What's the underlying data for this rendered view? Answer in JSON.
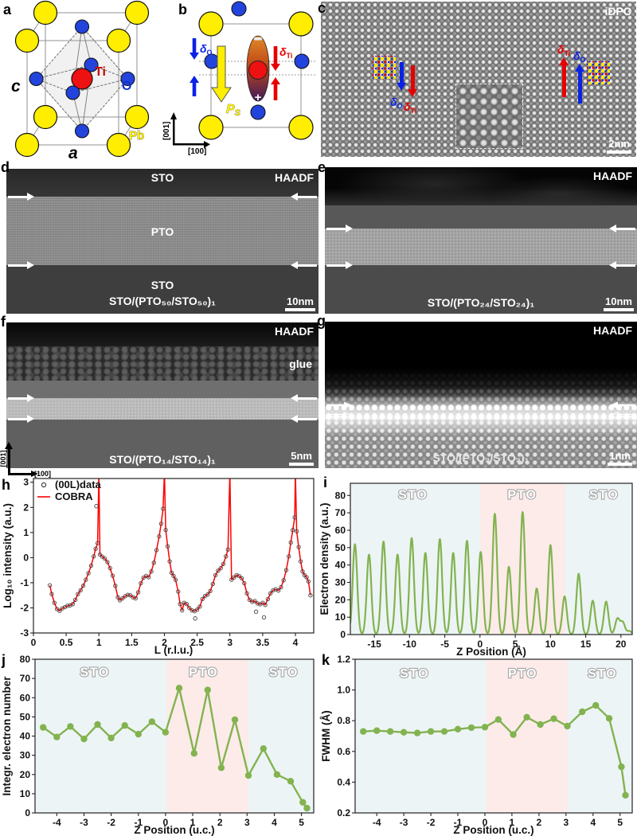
{
  "figure": {
    "panels": {
      "a": {
        "label": "a",
        "c_axis": "c",
        "a_axis": "a",
        "ti": "Ti",
        "o": "O",
        "pb": "Pb",
        "colors": {
          "pb": "#ffee00",
          "o": "#1133cc",
          "ti": "#ee1111"
        }
      },
      "b": {
        "label": "b",
        "delta_o": "δ",
        "delta_o_sub": "O",
        "delta_ti": "δ",
        "delta_ti_sub": "Ti",
        "ps": "P",
        "ps_sub": "S",
        "plus": "+",
        "minus": "−",
        "axis_v": "[001]",
        "axis_h": "[100]"
      },
      "c": {
        "label": "c",
        "technique": "iDPC",
        "scalebar": "2nm",
        "delta_o": "δ",
        "delta_o_sub": "O",
        "delta_ti": "δ",
        "delta_ti_sub": "Ti"
      },
      "d": {
        "label": "d",
        "technique": "HAADF",
        "layer_top": "STO",
        "layer_mid": "PTO",
        "layer_bot": "STO",
        "caption": "STO/(PTO₅₀/STO₅₀)₁",
        "scalebar": "10nm"
      },
      "e": {
        "label": "e",
        "technique": "HAADF",
        "caption": "STO/(PTO₂₄/STO₂₄)₁",
        "scalebar": "10nm"
      },
      "f": {
        "label": "f",
        "technique": "HAADF",
        "glue": "glue",
        "caption": "STO/(PTO₁₄/STO₁₄)₁",
        "scalebar": "5nm",
        "axis_v": "[001]",
        "axis_h": "[100]"
      },
      "g": {
        "label": "g",
        "technique": "HAADF",
        "caption": "STO/(PTO₂/STO₂)₁",
        "scalebar": "1nm"
      },
      "h": {
        "label": "h"
      },
      "i": {
        "label": "i"
      },
      "j": {
        "label": "j"
      },
      "k": {
        "label": "k"
      }
    }
  },
  "chart_data": [
    {
      "id": "h",
      "type": "line+scatter",
      "title": "",
      "xlabel": "L (r.l.u.)",
      "ylabel": "Log₁₀ intensity (a.u.)",
      "xlim": [
        0,
        4.28
      ],
      "ylim": [
        -3,
        3.15
      ],
      "xticks": [
        0,
        0.5,
        1,
        1.5,
        2,
        2.5,
        3,
        3.5,
        4
      ],
      "yticks": [
        -3,
        -2,
        -1,
        0,
        1,
        2,
        3
      ],
      "grid": false,
      "bg": "#ffffff",
      "legend": [
        {
          "label": "(00L)data",
          "type": "scatter",
          "color": "#333333"
        },
        {
          "label": "COBRA",
          "type": "line",
          "color": "#ff0000"
        }
      ],
      "line_color": "#ff0000",
      "line_width": 1.5,
      "markers": "open",
      "marker_color": "#444444",
      "marker_max": 2.5,
      "points": [
        [
          0.25,
          -1.1
        ],
        [
          0.28,
          -1.45
        ],
        [
          0.32,
          -1.8
        ],
        [
          0.36,
          -2.05
        ],
        [
          0.4,
          -2.12
        ],
        [
          0.44,
          -2.02
        ],
        [
          0.48,
          -1.97
        ],
        [
          0.52,
          -1.92
        ],
        [
          0.56,
          -1.9
        ],
        [
          0.6,
          -1.85
        ],
        [
          0.64,
          -1.68
        ],
        [
          0.68,
          -1.45
        ],
        [
          0.72,
          -1.3
        ],
        [
          0.76,
          -1.12
        ],
        [
          0.8,
          -0.88
        ],
        [
          0.84,
          -0.62
        ],
        [
          0.88,
          -0.32
        ],
        [
          0.92,
          0.05
        ],
        [
          0.95,
          0.35
        ],
        [
          0.98,
          0.58
        ],
        [
          1.0,
          3.4
        ],
        [
          1.015,
          0.12
        ],
        [
          1.05,
          0.04
        ],
        [
          1.09,
          -0.04
        ],
        [
          1.13,
          -0.18
        ],
        [
          1.17,
          -0.42
        ],
        [
          1.21,
          -0.72
        ],
        [
          1.25,
          -1.12
        ],
        [
          1.29,
          -1.58
        ],
        [
          1.32,
          -1.7
        ],
        [
          1.36,
          -1.62
        ],
        [
          1.4,
          -1.54
        ],
        [
          1.44,
          -1.48
        ],
        [
          1.48,
          -1.5
        ],
        [
          1.52,
          -1.58
        ],
        [
          1.56,
          -1.62
        ],
        [
          1.6,
          -1.38
        ],
        [
          1.64,
          -1.02
        ],
        [
          1.68,
          -0.8
        ],
        [
          1.72,
          -0.73
        ],
        [
          1.76,
          -0.78
        ],
        [
          1.8,
          -0.55
        ],
        [
          1.84,
          -0.2
        ],
        [
          1.88,
          0.3
        ],
        [
          1.92,
          0.85
        ],
        [
          1.95,
          1.35
        ],
        [
          1.98,
          1.95
        ],
        [
          2.0,
          3.4
        ],
        [
          2.02,
          1.1
        ],
        [
          2.05,
          0.45
        ],
        [
          2.08,
          -0.15
        ],
        [
          2.11,
          -0.6
        ],
        [
          2.14,
          -0.73
        ],
        [
          2.17,
          -0.88
        ],
        [
          2.21,
          -1.35
        ],
        [
          2.24,
          -1.85
        ],
        [
          2.27,
          -2.1
        ],
        [
          2.3,
          -1.8
        ],
        [
          2.34,
          -1.85
        ],
        [
          2.38,
          -2.0
        ],
        [
          2.42,
          -2.1
        ],
        [
          2.46,
          -2.13
        ],
        [
          2.5,
          -2.07
        ],
        [
          2.54,
          -1.95
        ],
        [
          2.58,
          -1.65
        ],
        [
          2.62,
          -1.53
        ],
        [
          2.66,
          -1.47
        ],
        [
          2.7,
          -1.33
        ],
        [
          2.74,
          -1.05
        ],
        [
          2.78,
          -0.7
        ],
        [
          2.82,
          -0.52
        ],
        [
          2.86,
          -0.42
        ],
        [
          2.9,
          -0.25
        ],
        [
          2.94,
          0.05
        ],
        [
          2.97,
          0.32
        ],
        [
          3.0,
          3.4
        ],
        [
          3.025,
          -0.88
        ],
        [
          3.06,
          -0.79
        ],
        [
          3.1,
          -0.7
        ],
        [
          3.14,
          -0.73
        ],
        [
          3.18,
          -0.82
        ],
        [
          3.22,
          -1.02
        ],
        [
          3.26,
          -1.42
        ],
        [
          3.3,
          -1.68
        ],
        [
          3.34,
          -1.76
        ],
        [
          3.38,
          -1.73
        ],
        [
          3.42,
          -1.82
        ],
        [
          3.46,
          -1.86
        ],
        [
          3.5,
          -1.8
        ],
        [
          3.54,
          -1.88
        ],
        [
          3.58,
          -1.65
        ],
        [
          3.62,
          -1.42
        ],
        [
          3.66,
          -1.3
        ],
        [
          3.7,
          -1.26
        ],
        [
          3.74,
          -1.31
        ],
        [
          3.78,
          -1.18
        ],
        [
          3.82,
          -0.9
        ],
        [
          3.86,
          -0.5
        ],
        [
          3.9,
          0.05
        ],
        [
          3.93,
          0.6
        ],
        [
          3.96,
          1.1
        ],
        [
          3.99,
          1.6
        ],
        [
          4.0,
          3.4
        ],
        [
          4.02,
          1.05
        ],
        [
          4.05,
          0.42
        ],
        [
          4.08,
          -0.15
        ],
        [
          4.11,
          -0.55
        ],
        [
          4.14,
          -0.7
        ],
        [
          4.17,
          -0.78
        ],
        [
          4.2,
          -0.95
        ],
        [
          4.23,
          -1.5
        ]
      ],
      "extra_markers": [
        [
          0.96,
          2.05
        ],
        [
          2.47,
          -2.42
        ],
        [
          3.4,
          -2.15
        ],
        [
          3.52,
          -2.38
        ]
      ]
    },
    {
      "id": "i",
      "type": "line",
      "title": "",
      "xlabel": "Z Position (Å)",
      "ylabel": "Electron density (a.u.)",
      "xlim": [
        -18.4,
        21.6
      ],
      "ylim": [
        0,
        87
      ],
      "xticks": [
        -15,
        -10,
        -5,
        0,
        5,
        10,
        15,
        20
      ],
      "yticks": [
        0,
        10,
        20,
        30,
        40,
        50,
        60,
        70,
        80
      ],
      "grid": false,
      "bg": "#edf4f5",
      "bands": [
        {
          "x0": 0.0,
          "x1": 12.1,
          "color": "#fcebe9"
        }
      ],
      "band_labels": [
        {
          "x": -9.5,
          "y": 78,
          "text": "STO"
        },
        {
          "x": 6.0,
          "y": 78,
          "text": "PTO"
        },
        {
          "x": 17.6,
          "y": 78,
          "text": "STO"
        }
      ],
      "line_color": "#82b350",
      "line_width": 2.2,
      "sigma": 0.32,
      "peaks": [
        [
          -17.75,
          52
        ],
        [
          -15.75,
          46
        ],
        [
          -13.7,
          53.5
        ],
        [
          -11.7,
          46
        ],
        [
          -9.7,
          55.5
        ],
        [
          -7.75,
          47
        ],
        [
          -5.7,
          55
        ],
        [
          -3.8,
          47
        ],
        [
          -1.85,
          54
        ],
        [
          0.1,
          47.5
        ],
        [
          2.1,
          69.5
        ],
        [
          4.1,
          39
        ],
        [
          6.05,
          70.5
        ],
        [
          8.05,
          26.5
        ],
        [
          10.0,
          51.5
        ],
        [
          12.0,
          22
        ],
        [
          14.0,
          35
        ],
        [
          16.0,
          19.5
        ],
        [
          17.9,
          19
        ],
        [
          19.5,
          9
        ],
        [
          20.25,
          7
        ],
        [
          21.2,
          2
        ]
      ]
    },
    {
      "id": "j",
      "type": "line+markers",
      "title": "",
      "xlabel": "Z Position (u.c.)",
      "ylabel": "Integr. electron number",
      "xlim": [
        -4.8,
        5.45
      ],
      "ylim": [
        0,
        80
      ],
      "xticks": [
        -4,
        -3,
        -2,
        -1,
        0,
        1,
        2,
        3,
        4,
        5
      ],
      "yticks": [
        0,
        10,
        20,
        30,
        40,
        50,
        60,
        70,
        80
      ],
      "grid": false,
      "bg": "#edf4f5",
      "bands": [
        {
          "x0": 0.05,
          "x1": 3.05,
          "color": "#fcebe9"
        }
      ],
      "band_labels": [
        {
          "x": -2.6,
          "y": 71,
          "text": "STO"
        },
        {
          "x": 1.4,
          "y": 71,
          "text": "PTO"
        },
        {
          "x": 4.35,
          "y": 71,
          "text": "STO"
        }
      ],
      "line_color": "#82b350",
      "line_width": 2.4,
      "markers": "filled",
      "marker_r": 4.2,
      "points": [
        [
          -4.5,
          44.5
        ],
        [
          -4.0,
          39.5
        ],
        [
          -3.5,
          45
        ],
        [
          -3.0,
          38.5
        ],
        [
          -2.5,
          46
        ],
        [
          -2.0,
          39
        ],
        [
          -1.5,
          45.5
        ],
        [
          -1.0,
          41
        ],
        [
          -0.5,
          47.5
        ],
        [
          0.0,
          42
        ],
        [
          0.5,
          65
        ],
        [
          1.05,
          31
        ],
        [
          1.55,
          64
        ],
        [
          2.05,
          23.5
        ],
        [
          2.55,
          48.5
        ],
        [
          3.05,
          19.5
        ],
        [
          3.6,
          33.5
        ],
        [
          4.1,
          20
        ],
        [
          4.6,
          16.5
        ],
        [
          5.05,
          5.5
        ],
        [
          5.2,
          2.5
        ]
      ]
    },
    {
      "id": "k",
      "type": "line+markers",
      "title": "",
      "xlabel": "Z Position (u.c.)",
      "ylabel": "FWHM (Å)",
      "xlim": [
        -4.8,
        5.45
      ],
      "ylim": [
        0.2,
        1.2
      ],
      "ydec": 1,
      "xticks": [
        -4,
        -3,
        -2,
        -1,
        0,
        1,
        2,
        3,
        4,
        5
      ],
      "yticks": [
        0.2,
        0.4,
        0.6,
        0.8,
        1.0,
        1.2
      ],
      "grid": false,
      "bg": "#edf4f5",
      "bands": [
        {
          "x0": 0.05,
          "x1": 3.05,
          "color": "#fcebe9"
        }
      ],
      "band_labels": [
        {
          "x": -2.6,
          "y": 1.08,
          "text": "STO"
        },
        {
          "x": 1.4,
          "y": 1.08,
          "text": "PTO"
        },
        {
          "x": 4.35,
          "y": 1.08,
          "text": "STO"
        }
      ],
      "line_color": "#82b350",
      "line_width": 2.4,
      "markers": "filled",
      "marker_r": 4.2,
      "points": [
        [
          -4.5,
          0.73
        ],
        [
          -4.0,
          0.735
        ],
        [
          -3.5,
          0.73
        ],
        [
          -3.0,
          0.725
        ],
        [
          -2.5,
          0.72
        ],
        [
          -2.0,
          0.73
        ],
        [
          -1.5,
          0.73
        ],
        [
          -1.0,
          0.745
        ],
        [
          -0.5,
          0.755
        ],
        [
          0.0,
          0.758
        ],
        [
          0.5,
          0.808
        ],
        [
          1.05,
          0.71
        ],
        [
          1.55,
          0.823
        ],
        [
          2.05,
          0.775
        ],
        [
          2.55,
          0.813
        ],
        [
          3.05,
          0.765
        ],
        [
          3.6,
          0.858
        ],
        [
          4.1,
          0.9
        ],
        [
          4.6,
          0.815
        ],
        [
          5.05,
          0.5
        ],
        [
          5.2,
          0.315
        ]
      ]
    }
  ]
}
